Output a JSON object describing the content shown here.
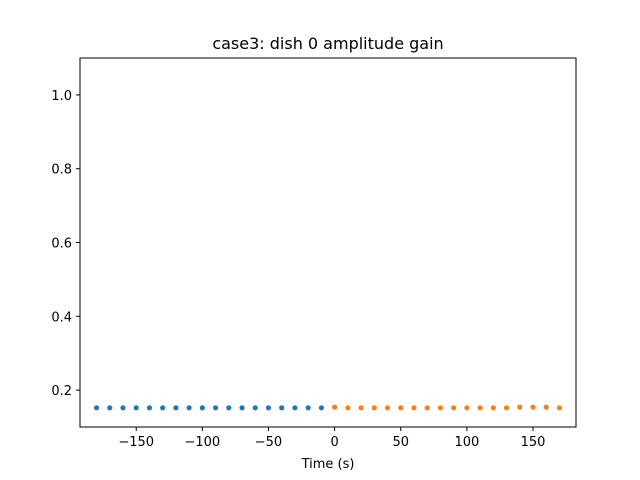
{
  "chart_data": {
    "type": "scatter",
    "title": "case3: dish 0 amplitude gain",
    "xlabel": "Time (s)",
    "ylabel": "",
    "xlim": [
      -192.5,
      182.5
    ],
    "ylim": [
      0.1,
      1.1
    ],
    "xticks": [
      -150,
      -100,
      -50,
      0,
      50,
      100,
      150
    ],
    "xtick_labels": [
      "−150",
      "−100",
      "−50",
      "0",
      "50",
      "100",
      "150"
    ],
    "yticks": [
      0.2,
      0.4,
      0.6,
      0.8,
      1.0
    ],
    "ytick_labels": [
      "0.2",
      "0.4",
      "0.6",
      "0.8",
      "1.0"
    ],
    "grid": false,
    "series": [
      {
        "color": "#1f77b4",
        "x": [
          -180,
          -170,
          -160,
          -150,
          -140,
          -130,
          -120,
          -110,
          -100,
          -90,
          -80,
          -70,
          -60,
          -50,
          -40,
          -30,
          -20,
          -10
        ],
        "y": [
          0.152,
          0.152,
          0.152,
          0.152,
          0.152,
          0.152,
          0.152,
          0.152,
          0.152,
          0.152,
          0.152,
          0.152,
          0.152,
          0.152,
          0.152,
          0.152,
          0.152,
          0.152
        ]
      },
      {
        "color": "#ff7f0e",
        "x": [
          0,
          10,
          20,
          30,
          40,
          50,
          60,
          70,
          80,
          90,
          100,
          110,
          120,
          130,
          140,
          150,
          160,
          170
        ],
        "y": [
          0.154,
          0.152,
          0.152,
          0.152,
          0.152,
          0.152,
          0.152,
          0.152,
          0.152,
          0.152,
          0.152,
          0.152,
          0.152,
          0.152,
          0.154,
          0.154,
          0.154,
          0.152
        ]
      }
    ]
  }
}
